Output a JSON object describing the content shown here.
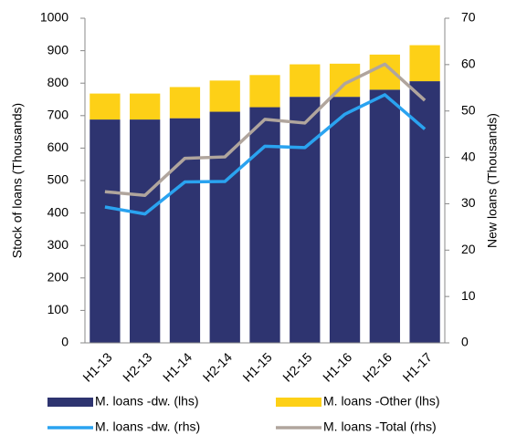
{
  "chart_data": {
    "type": "bar-line",
    "categories": [
      "H1-13",
      "H2-13",
      "H1-14",
      "H2-14",
      "H1-15",
      "H2-15",
      "H1-16",
      "H2-16",
      "H1-17"
    ],
    "ylabel": "Stock of loans (Thousands)",
    "y2label": "New loans (Thousands)",
    "ylim": [
      0,
      1000
    ],
    "yticks": [
      0,
      100,
      200,
      300,
      400,
      500,
      600,
      700,
      800,
      900,
      1000
    ],
    "y2lim": [
      0,
      70
    ],
    "y2ticks": [
      0,
      10,
      20,
      30,
      40,
      50,
      60,
      70
    ],
    "series": [
      {
        "name": "M. loans -dw. (lhs)",
        "color": "#2e3470",
        "kind": "bar",
        "values": [
          688,
          688,
          692,
          712,
          726,
          758,
          758,
          780,
          806
        ]
      },
      {
        "name": "M. loans -Other (lhs)",
        "color": "#fdd017",
        "kind": "bar",
        "values": [
          80,
          80,
          96,
          96,
          99,
          100,
          102,
          108,
          111
        ]
      },
      {
        "name": "M. loans -dw. (rhs)",
        "color": "#2aa3f0",
        "kind": "line",
        "axis": "y2",
        "values": [
          29.3,
          27.8,
          34.7,
          34.8,
          42.4,
          42.1,
          49.3,
          53.5,
          46.1
        ]
      },
      {
        "name": "M. loans -Total (rhs)",
        "color": "#b0a59d",
        "kind": "line",
        "axis": "y2",
        "values": [
          32.6,
          31.8,
          39.8,
          40.1,
          48.2,
          47.4,
          55.9,
          60.1,
          52.3
        ]
      }
    ]
  }
}
